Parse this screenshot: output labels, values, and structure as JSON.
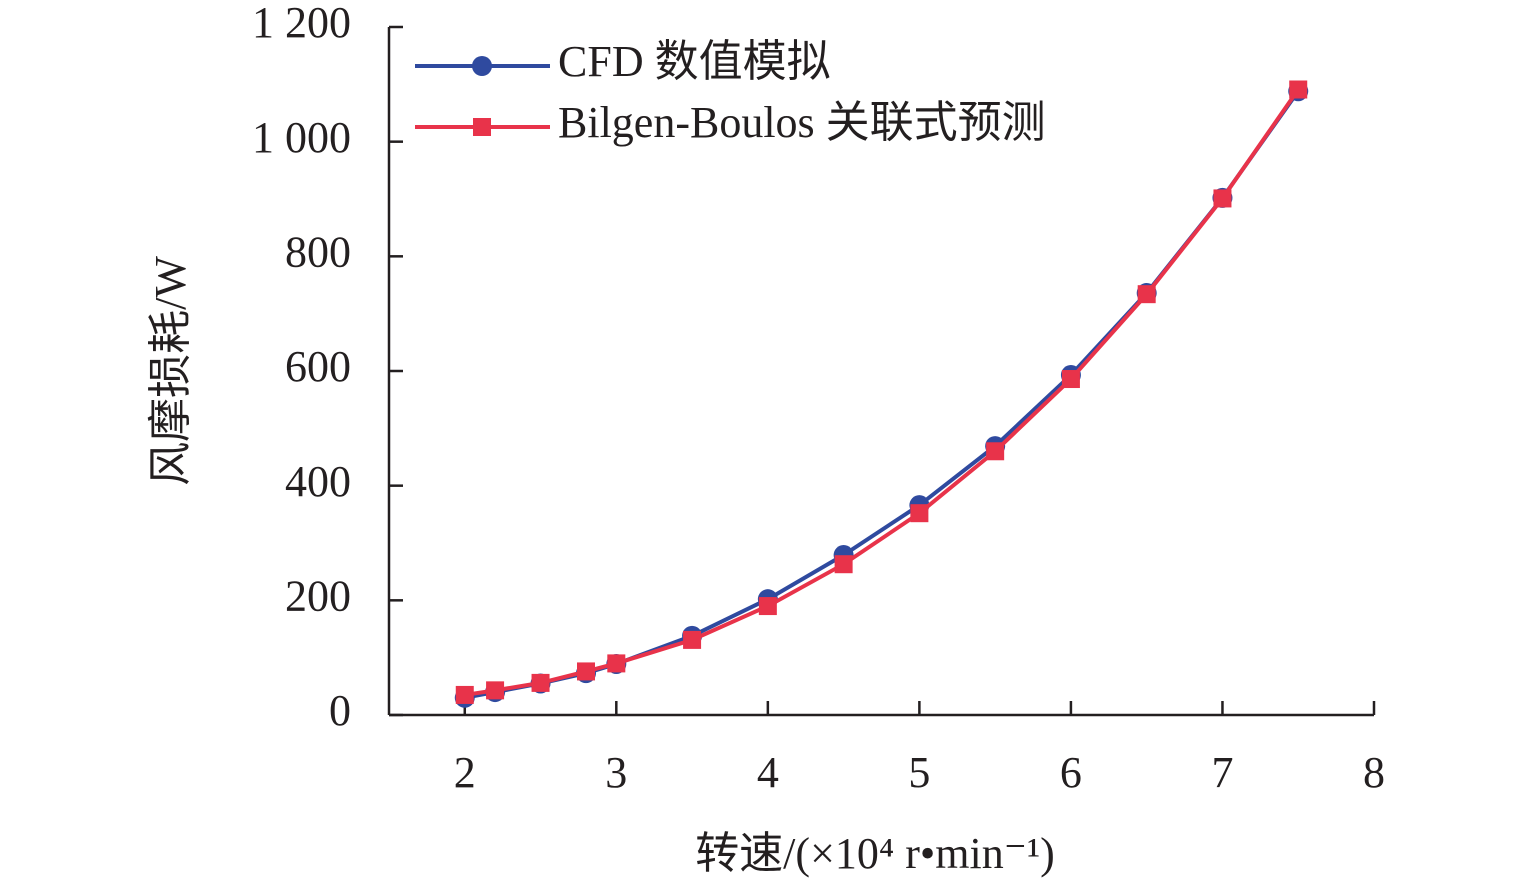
{
  "chart_data": {
    "type": "line",
    "x_label": "转速/(×10⁴ r•min⁻¹)",
    "y_label": "风摩损耗/W",
    "x": [
      2,
      2.2,
      2.5,
      2.8,
      3,
      3.5,
      4,
      4.5,
      5,
      5.5,
      6,
      6.5,
      7,
      7.5
    ],
    "series": [
      {
        "name": "CFD 数值模拟",
        "color": "#2f4a9f",
        "marker": "circle",
        "values": [
          30,
          40,
          55,
          73,
          89,
          138,
          202,
          279,
          366,
          469,
          593,
          736,
          902,
          1088
        ]
      },
      {
        "name": "Bilgen-Boulos 关联式预测",
        "color": "#e8334a",
        "marker": "square",
        "values": [
          35,
          43,
          56,
          76,
          90,
          131,
          190,
          263,
          352,
          460,
          586,
          734,
          901,
          1091
        ]
      }
    ],
    "xlim": [
      1.5,
      8
    ],
    "xticks": [
      2,
      3,
      4,
      5,
      6,
      7,
      8
    ],
    "ylim": [
      0,
      1200
    ],
    "yticks": [
      0,
      200,
      400,
      600,
      800,
      {
        "value": 1000,
        "label": "1 000"
      },
      {
        "value": 1200,
        "label": "1 200"
      }
    ],
    "legend": "top-left"
  }
}
